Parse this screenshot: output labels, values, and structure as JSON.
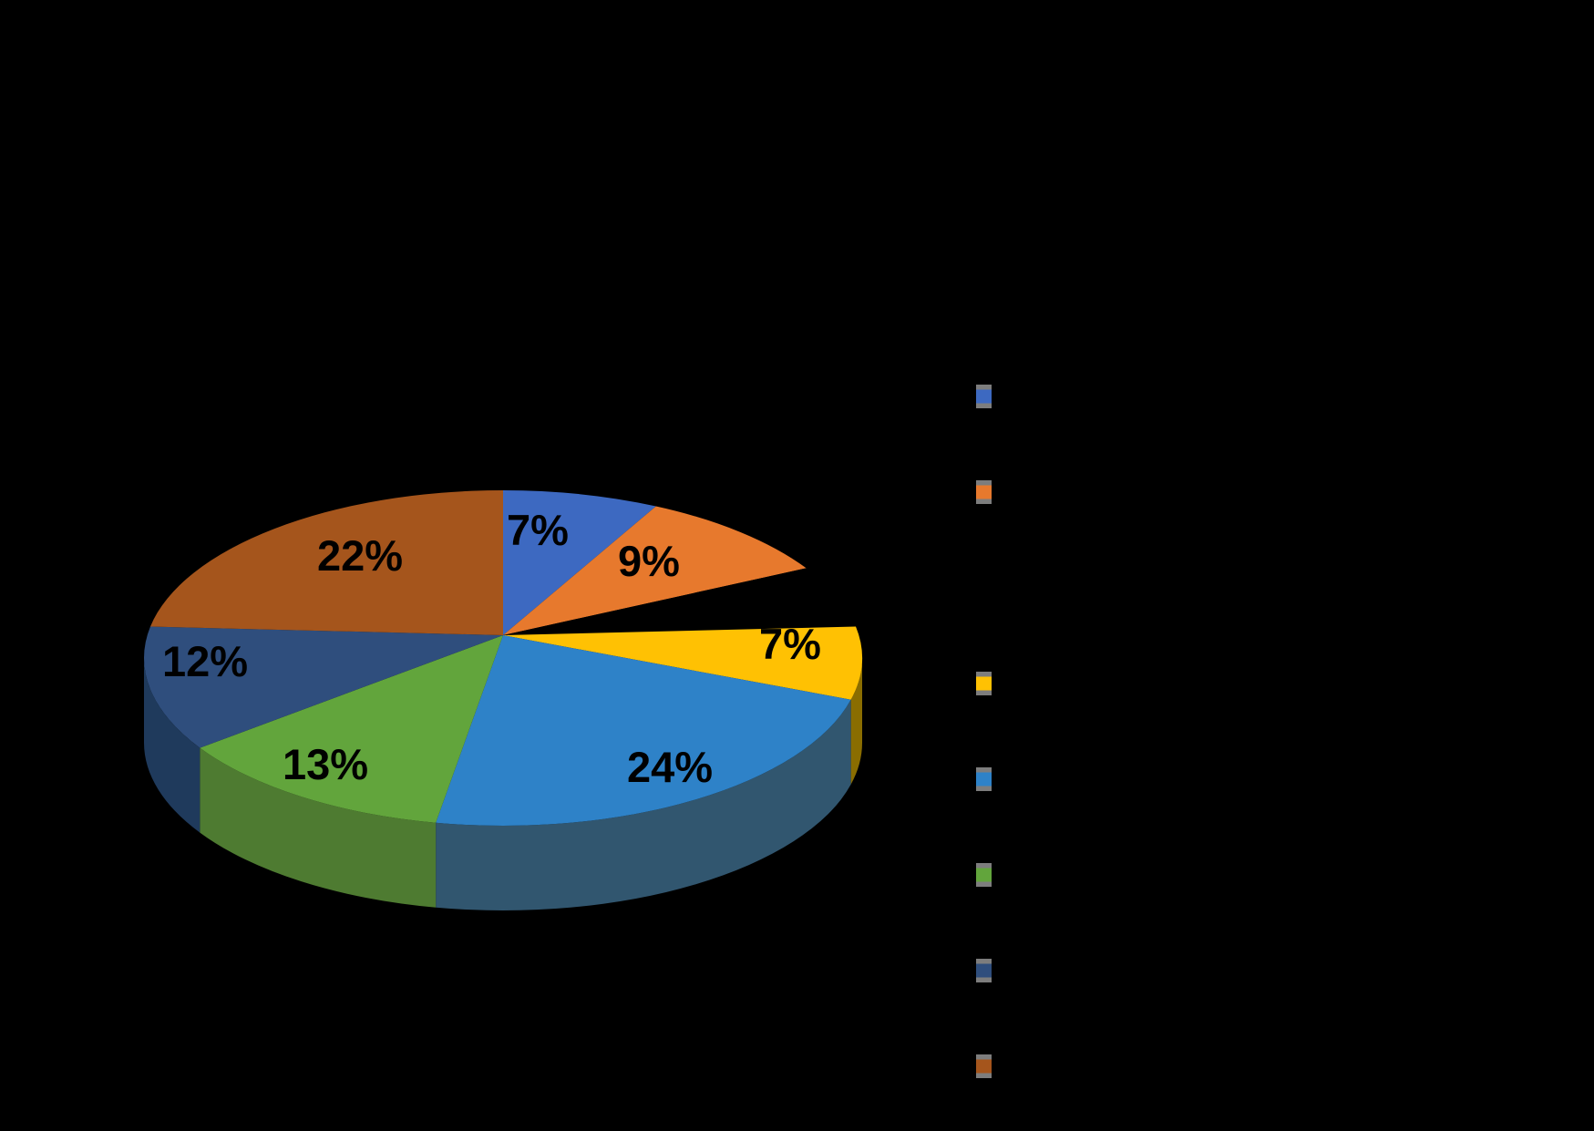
{
  "background": "#000000",
  "chart_data": {
    "type": "pie",
    "style": "3d",
    "direction": "clockwise",
    "start_angle_deg": 0,
    "title": "",
    "label_color": "#000000",
    "slices": [
      {
        "value": 7,
        "label": "7%",
        "color": "#3D69C1",
        "side_color": null
      },
      {
        "value": 9,
        "label": "9%",
        "color": "#E7792D",
        "side_color": null
      },
      {
        "value": 6,
        "label": "",
        "color": "#000000",
        "side_color": null
      },
      {
        "value": 7,
        "label": "7%",
        "color": "#FFC103",
        "side_color": "#8A6D00"
      },
      {
        "value": 24,
        "label": "24%",
        "color": "#2E82C8",
        "side_color": "#31566F"
      },
      {
        "value": 13,
        "label": "13%",
        "color": "#62A53C",
        "side_color": "#4E7B31"
      },
      {
        "value": 12,
        "label": "12%",
        "color": "#2F4E7D",
        "side_color": "#1F3A5C"
      },
      {
        "value": 22,
        "label": "22%",
        "color": "#A5551C",
        "side_color": null
      }
    ],
    "legend": {
      "position": "right",
      "marker_frame_color": "#7D7D7D",
      "entries": [
        {
          "color": "#3D69C1"
        },
        {
          "color": "#E7792D"
        },
        {
          "color": "#000000"
        },
        {
          "color": "#FFC103"
        },
        {
          "color": "#2E82C8"
        },
        {
          "color": "#62A53C"
        },
        {
          "color": "#2F4E7D"
        },
        {
          "color": "#A5551C"
        }
      ]
    }
  }
}
